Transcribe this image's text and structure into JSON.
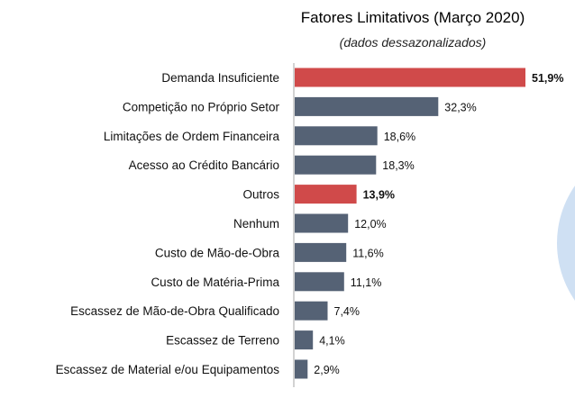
{
  "chart_data": {
    "type": "bar",
    "orientation": "horizontal",
    "title": "Fatores Limitativos (Março 2020)",
    "subtitle": "(dados dessazonalizados)",
    "categories": [
      "Demanda Insuficiente",
      "Competição no Próprio Setor",
      "Limitações de Ordem Financeira",
      "Acesso ao Crédito Bancário",
      "Outros",
      "Nenhum",
      "Custo de Mão-de-Obra",
      "Custo de Matéria-Prima",
      "Escassez de Mão-de-Obra Qualificado",
      "Escassez de Terreno",
      "Escassez de Material e/ou Equipamentos"
    ],
    "values": [
      51.9,
      32.3,
      18.6,
      18.3,
      13.9,
      12.0,
      11.6,
      11.1,
      7.4,
      4.1,
      2.9
    ],
    "value_labels": [
      "51,9%",
      "32,3%",
      "18,6%",
      "18,3%",
      "13,9%",
      "12,0%",
      "11,6%",
      "11,1%",
      "7,4%",
      "4,1%",
      "2,9%"
    ],
    "highlighted": [
      true,
      false,
      false,
      false,
      true,
      false,
      false,
      false,
      false,
      false,
      false
    ],
    "xlim": [
      0,
      51.9
    ],
    "grid": false,
    "legend": "none",
    "colors": {
      "bar": "#556275",
      "highlight": "#d04a4a",
      "axis": "#a6a6a6",
      "decor_circle": "#cfe0f3"
    }
  }
}
